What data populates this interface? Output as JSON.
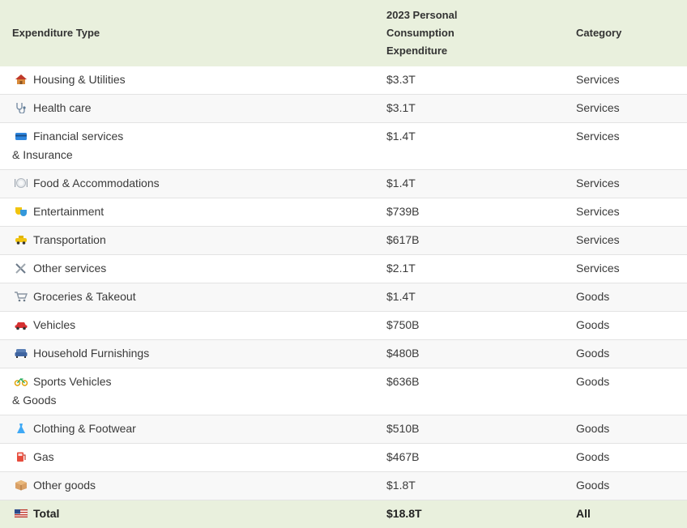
{
  "headers": {
    "type": "Expenditure Type",
    "pce_line1": "2023 Personal",
    "pce_line2": "Consumption",
    "pce_line3": "Expenditure",
    "category": "Category"
  },
  "rows": [
    {
      "icon": "house-icon",
      "label_l1": "Housing & Utilities",
      "label_l2": "",
      "value": "$3.3T",
      "category": "Services"
    },
    {
      "icon": "stethoscope-icon",
      "label_l1": "Health care",
      "label_l2": "",
      "value": "$3.1T",
      "category": "Services"
    },
    {
      "icon": "credit-card-icon",
      "label_l1": "Financial services",
      "label_l2": "& Insurance",
      "value": "$1.4T",
      "category": "Services"
    },
    {
      "icon": "plate-icon",
      "label_l1": "Food & Accommodations",
      "label_l2": "",
      "value": "$1.4T",
      "category": "Services"
    },
    {
      "icon": "theater-masks-icon",
      "label_l1": "Entertainment",
      "label_l2": "",
      "value": "$739B",
      "category": "Services"
    },
    {
      "icon": "taxi-icon",
      "label_l1": "Transportation",
      "label_l2": "",
      "value": "$617B",
      "category": "Services"
    },
    {
      "icon": "tools-icon",
      "label_l1": "Other services",
      "label_l2": "",
      "value": "$2.1T",
      "category": "Services"
    },
    {
      "icon": "shopping-cart-icon",
      "label_l1": "Groceries & Takeout",
      "label_l2": "",
      "value": "$1.4T",
      "category": "Goods"
    },
    {
      "icon": "car-icon",
      "label_l1": "Vehicles",
      "label_l2": "",
      "value": "$750B",
      "category": "Goods"
    },
    {
      "icon": "couch-icon",
      "label_l1": "Household Furnishings",
      "label_l2": "",
      "value": "$480B",
      "category": "Goods"
    },
    {
      "icon": "bicycle-icon",
      "label_l1": "Sports Vehicles",
      "label_l2": "& Goods",
      "value": "$636B",
      "category": "Goods"
    },
    {
      "icon": "dress-icon",
      "label_l1": "Clothing & Footwear",
      "label_l2": "",
      "value": "$510B",
      "category": "Goods"
    },
    {
      "icon": "fuel-pump-icon",
      "label_l1": "Gas",
      "label_l2": "",
      "value": "$467B",
      "category": "Goods"
    },
    {
      "icon": "package-icon",
      "label_l1": "Other goods",
      "label_l2": "",
      "value": "$1.8T",
      "category": "Goods"
    }
  ],
  "total": {
    "icon": "us-flag-icon",
    "label": "Total",
    "value": "$18.8T",
    "category": "All"
  }
}
